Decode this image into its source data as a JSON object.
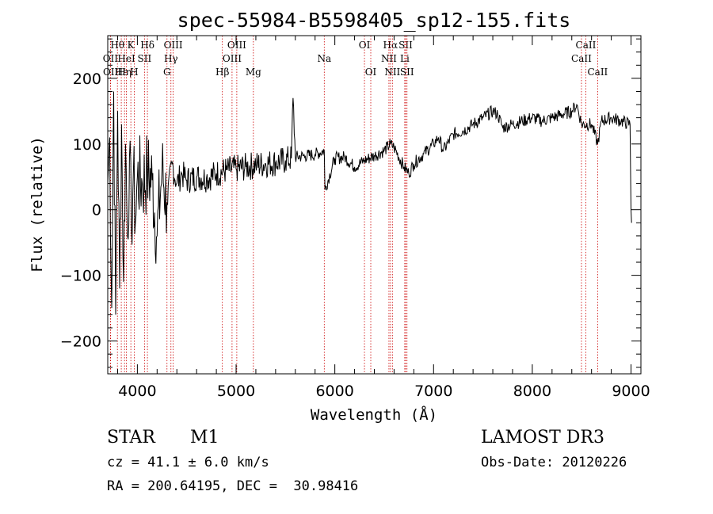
{
  "chart_data": {
    "type": "line",
    "title": "spec-55984-B5598405_sp12-155.fits",
    "xlabel": "Wavelength (Å)",
    "ylabel": "Flux (relative)",
    "xlim": [
      3700,
      9100
    ],
    "ylim": [
      -250,
      265
    ],
    "xticks": [
      4000,
      5000,
      6000,
      7000,
      8000,
      9000
    ],
    "yticks": [
      -200,
      -100,
      0,
      100,
      200
    ],
    "series": [
      {
        "name": "flux",
        "x": [
          3700,
          3720,
          3740,
          3760,
          3780,
          3800,
          3820,
          3840,
          3860,
          3880,
          3900,
          3920,
          3940,
          3960,
          3980,
          4000,
          4050,
          4100,
          4150,
          4200,
          4250,
          4300,
          4350,
          4400,
          4450,
          4500,
          4600,
          4700,
          4800,
          4900,
          5000,
          5100,
          5200,
          5300,
          5400,
          5500,
          5560,
          5577,
          5600,
          5700,
          5800,
          5893,
          5900,
          6000,
          6100,
          6200,
          6300,
          6400,
          6500,
          6563,
          6600,
          6700,
          6750,
          6800,
          6900,
          7000,
          7050,
          7100,
          7200,
          7300,
          7400,
          7500,
          7600,
          7650,
          7700,
          7800,
          7900,
          8000,
          8100,
          8200,
          8300,
          8400,
          8450,
          8500,
          8600,
          8662,
          8700,
          8800,
          8900,
          8990,
          9000,
          9005
        ],
        "y": [
          40,
          110,
          -150,
          180,
          -160,
          150,
          -120,
          130,
          -110,
          100,
          -40,
          80,
          -30,
          60,
          -20,
          50,
          40,
          55,
          45,
          -40,
          60,
          10,
          70,
          40,
          55,
          45,
          50,
          48,
          55,
          60,
          62,
          65,
          68,
          70,
          72,
          75,
          78,
          170,
          80,
          82,
          84,
          90,
          30,
          78,
          80,
          65,
          75,
          82,
          90,
          100,
          95,
          65,
          55,
          70,
          85,
          100,
          110,
          90,
          115,
          120,
          130,
          140,
          150,
          145,
          125,
          130,
          135,
          140,
          135,
          140,
          145,
          150,
          160,
          130,
          130,
          100,
          135,
          140,
          135,
          130,
          0,
          -20
        ]
      }
    ],
    "lines": [
      {
        "label": "Hθ",
        "x": 3798,
        "row": 1
      },
      {
        "label": "OII",
        "x": 3727,
        "row": 2
      },
      {
        "label": "OII",
        "x": 3729,
        "row": 3
      },
      {
        "label": "Hε",
        "x": 3837,
        "row": 3
      },
      {
        "label": "Hη",
        "x": 3870,
        "row": 3
      },
      {
        "label": "HeI",
        "x": 3889,
        "row": 2
      },
      {
        "label": "K",
        "x": 3934,
        "row": 1
      },
      {
        "label": "H",
        "x": 3968,
        "row": 3
      },
      {
        "label": "SII",
        "x": 4072,
        "row": 2
      },
      {
        "label": "Hδ",
        "x": 4102,
        "row": 1
      },
      {
        "label": "OIII",
        "x": 4363,
        "row": 1
      },
      {
        "label": "Hγ",
        "x": 4340,
        "row": 2
      },
      {
        "label": "G",
        "x": 4300,
        "row": 3
      },
      {
        "label": "Hβ",
        "x": 4861,
        "row": 3
      },
      {
        "label": "OIII",
        "x": 5007,
        "row": 1
      },
      {
        "label": "OIII",
        "x": 4959,
        "row": 2
      },
      {
        "label": "Mg",
        "x": 5175,
        "row": 3
      },
      {
        "label": "Na",
        "x": 5893,
        "row": 2
      },
      {
        "label": "OI",
        "x": 6300,
        "row": 1
      },
      {
        "label": "OI",
        "x": 6364,
        "row": 3
      },
      {
        "label": "Hα",
        "x": 6563,
        "row": 1
      },
      {
        "label": "NII",
        "x": 6548,
        "row": 2
      },
      {
        "label": "NII",
        "x": 6583,
        "row": 3
      },
      {
        "label": "SII",
        "x": 6717,
        "row": 1
      },
      {
        "label": "Li",
        "x": 6708,
        "row": 2
      },
      {
        "label": "SII",
        "x": 6731,
        "row": 3
      },
      {
        "label": "CaII",
        "x": 8542,
        "row": 1
      },
      {
        "label": "CaII",
        "x": 8498,
        "row": 2
      },
      {
        "label": "CaII",
        "x": 8662,
        "row": 3
      }
    ]
  },
  "info": {
    "object_class": "STAR",
    "subclass": "M1",
    "survey": "LAMOST DR3",
    "cz_line": "cz = 41.1 ± 6.0 km/s",
    "obs_date": "Obs-Date: 20120226",
    "coords": "RA = 200.64195, DEC =  30.98416"
  }
}
